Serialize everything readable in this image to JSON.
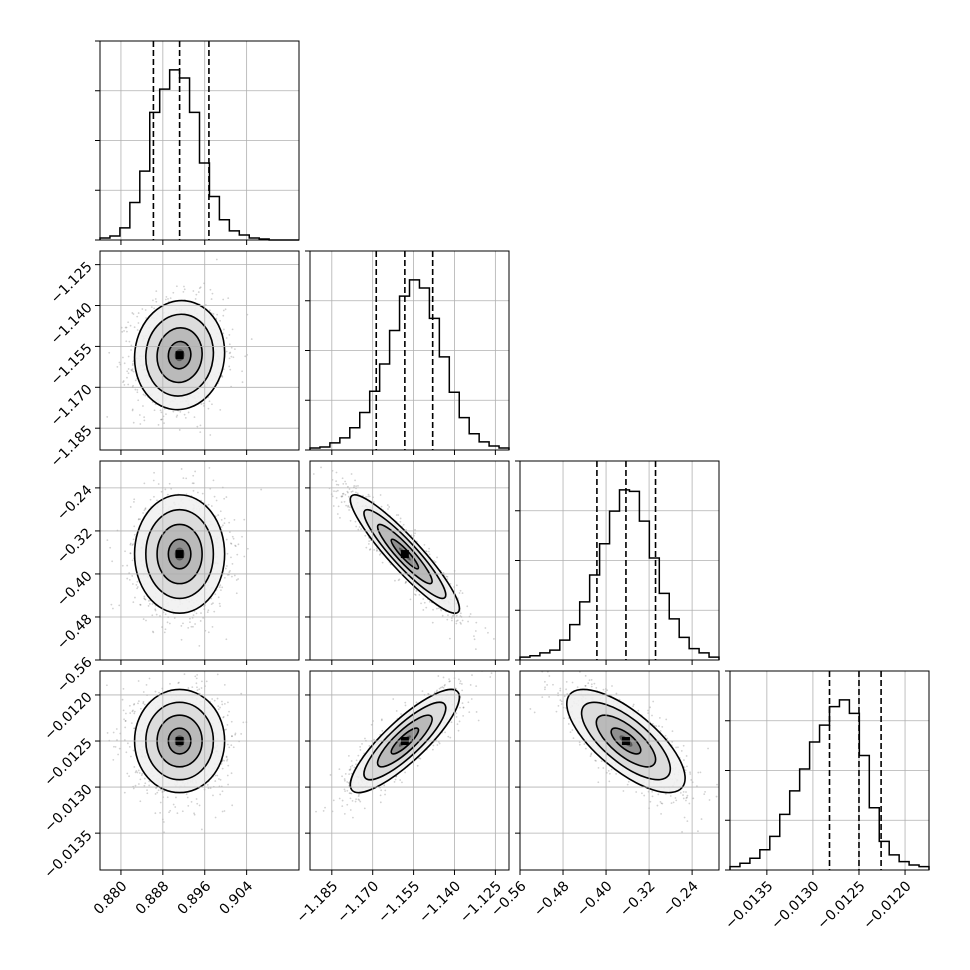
{
  "chart_data": {
    "type": "corner",
    "grid": true,
    "parameters": [
      {
        "xlim": [
          0.876,
          0.914
        ],
        "ticks": [
          0.88,
          0.888,
          0.896,
          0.904
        ],
        "tick_labels": [
          "0.880",
          "0.888",
          "0.896",
          "0.904"
        ],
        "quantiles": [
          0.8862,
          0.8912,
          0.8968
        ]
      },
      {
        "xlim": [
          -1.193,
          -1.12
        ],
        "ticks": [
          -1.185,
          -1.17,
          -1.155,
          -1.14,
          -1.125
        ],
        "tick_labels": [
          "−1.185",
          "−1.170",
          "−1.155",
          "−1.140",
          "−1.125"
        ],
        "quantiles": [
          -1.1687,
          -1.1582,
          -1.148
        ]
      },
      {
        "xlim": [
          -0.56,
          -0.19
        ],
        "ticks": [
          -0.56,
          -0.48,
          -0.4,
          -0.32,
          -0.24
        ],
        "tick_labels": [
          "−0.56",
          "−0.48",
          "−0.40",
          "−0.32",
          "−0.24"
        ],
        "quantiles": [
          -0.417,
          -0.363,
          -0.308
        ]
      },
      {
        "xlim": [
          -0.0139,
          -0.01174
        ],
        "ticks": [
          -0.0135,
          -0.013,
          -0.0125,
          -0.012
        ],
        "tick_labels": [
          "−0.0135",
          "−0.0130",
          "−0.0125",
          "−0.0120"
        ],
        "quantiles": [
          -0.01282,
          -0.0125,
          -0.01226
        ]
      }
    ],
    "histograms": [
      {
        "edges_range": [
          0.876,
          0.914
        ],
        "counts": [
          2,
          4,
          12,
          37,
          68,
          126,
          149,
          168,
          160,
          126,
          76,
          43,
          20,
          9,
          5,
          2,
          1,
          0,
          0,
          0
        ]
      },
      {
        "edges_range": [
          -1.193,
          -1.12
        ],
        "counts": [
          2,
          3,
          7,
          12,
          22,
          37,
          58,
          85,
          118,
          152,
          168,
          160,
          130,
          92,
          57,
          32,
          16,
          8,
          4,
          2
        ]
      },
      {
        "edges_range": [
          -0.56,
          -0.19
        ],
        "counts": [
          2,
          3,
          5,
          7,
          14,
          25,
          41,
          60,
          82,
          105,
          120,
          119,
          98,
          72,
          47,
          29,
          16,
          8,
          5,
          2
        ]
      },
      {
        "edges_range": [
          -0.0139,
          -0.01174
        ],
        "counts": [
          2,
          4,
          7,
          12,
          20,
          33,
          47,
          60,
          76,
          86,
          97,
          101,
          93,
          68,
          37,
          17,
          9,
          5,
          3,
          2
        ]
      }
    ],
    "pairs": [
      {
        "row": 1,
        "col": 0,
        "center": [
          0.8912,
          -1.1582
        ],
        "sd": [
          0.0043,
          0.01
        ],
        "rho": 0.05
      },
      {
        "row": 2,
        "col": 0,
        "center": [
          0.8912,
          -0.363
        ],
        "sd": [
          0.0043,
          0.055
        ],
        "rho": 0.0
      },
      {
        "row": 2,
        "col": 1,
        "center": [
          -1.1582,
          -0.363
        ],
        "sd": [
          0.01,
          0.055
        ],
        "rho": -0.92
      },
      {
        "row": 3,
        "col": 0,
        "center": [
          0.8912,
          -0.0125
        ],
        "sd": [
          0.0043,
          0.00028
        ],
        "rho": 0.0
      },
      {
        "row": 3,
        "col": 1,
        "center": [
          -1.1582,
          -0.0125
        ],
        "sd": [
          0.01,
          0.00028
        ],
        "rho": 0.85
      },
      {
        "row": 3,
        "col": 2,
        "center": [
          -0.363,
          -0.0125
        ],
        "sd": [
          0.055,
          0.00028
        ],
        "rho": -0.72
      }
    ],
    "contour_levels_sigma": [
      0.5,
      1.0,
      1.5,
      2.0
    ]
  }
}
